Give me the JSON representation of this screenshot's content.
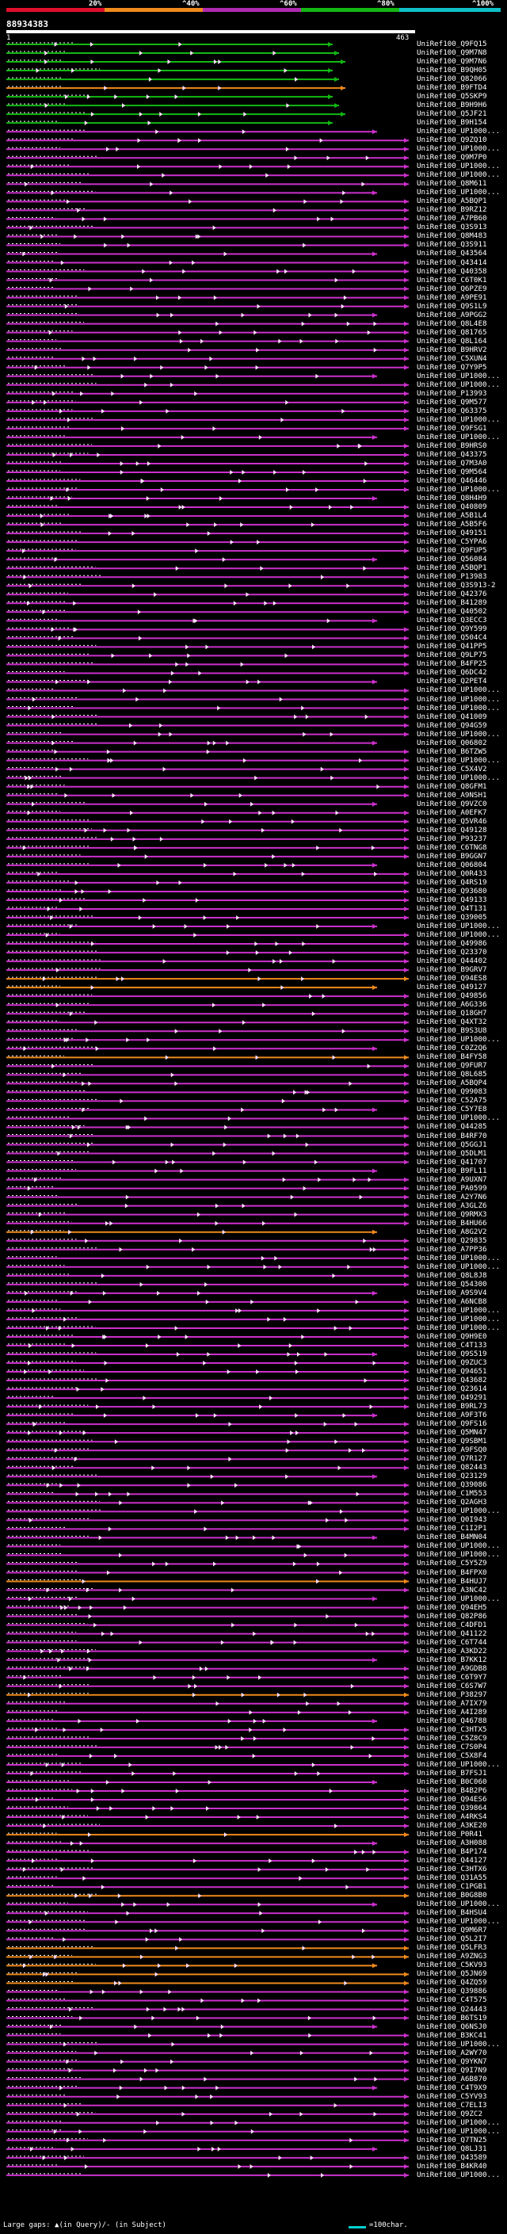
{
  "scale": {
    "labels": [
      "20%",
      "^40%",
      "^60%",
      "^80%",
      "^100%"
    ],
    "colors": [
      "#e0102a",
      "#f08a1c",
      "#b02ab0",
      "#14b814",
      "#10c0c8"
    ]
  },
  "query": {
    "id": "88934383",
    "start": "1",
    "end": "463"
  },
  "hits": [
    "UniRef100_Q9FQ15",
    "UniRef100_Q9M7N8",
    "UniRef100_Q9M7N6",
    "UniRef100_B9QH05",
    "UniRef100_Q82066",
    "UniRef100_B9FTD4",
    "UniRef100_Q5SKP9",
    "UniRef100_B9H9H6",
    "UniRef100_Q5JF21",
    "UniRef100_B9H154",
    "UniRef100_UP1000...",
    "UniRef100_Q9ZQ10",
    "UniRef100_UP1000...",
    "UniRef100_Q9M7P0",
    "UniRef100_UP1000...",
    "UniRef100_UP1000...",
    "UniRef100_Q8M611",
    "UniRef100_UP1000...",
    "UniRef100_A5BQP1",
    "UniRef100_B9RZ12",
    "UniRef100_A7PB60",
    "UniRef100_Q3S913",
    "UniRef100_Q8M483",
    "UniRef100_Q3S911",
    "UniRef100_Q43564",
    "UniRef100_Q43414",
    "UniRef100_Q40358",
    "UniRef100_C6T0K1",
    "UniRef100_Q6PZE9",
    "UniRef100_A9PE91",
    "UniRef100_Q9S1L9",
    "UniRef100_A9PGG2",
    "UniRef100_Q8L4E8",
    "UniRef100_Q81765",
    "UniRef100_Q8L164",
    "UniRef100_B9HRV2",
    "UniRef100_C5XUN4",
    "UniRef100_Q7Y9P5",
    "UniRef100_UP1000...",
    "UniRef100_UP1000...",
    "UniRef100_P13993",
    "UniRef100_Q9M577",
    "UniRef100_Q63375",
    "UniRef100_UP1000...",
    "UniRef100_Q9FSG1",
    "UniRef100_UP1000...",
    "UniRef100_B9HRS0",
    "UniRef100_Q43375",
    "UniRef100_Q7M3A0",
    "UniRef100_Q9M564",
    "UniRef100_Q46446",
    "UniRef100_UP1000...",
    "UniRef100_Q8H4H9",
    "UniRef100_Q40809",
    "UniRef100_A5B1L4",
    "UniRef100_A5B5F6",
    "UniRef100_Q49151",
    "UniRef100_C5YPA6",
    "UniRef100_Q9FUP5",
    "UniRef100_Q56084",
    "UniRef100_A5BQP1",
    "UniRef100_P13983",
    "UniRef100_Q3S913-2",
    "UniRef100_Q42376",
    "UniRef100_B41289",
    "UniRef100_Q40502",
    "UniRef100_Q3ECC3",
    "UniRef100_Q9Y599",
    "UniRef100_Q504C4",
    "UniRef100_Q41PP5",
    "UniRef100_Q9LP75",
    "UniRef100_B4FP25",
    "UniRef100_Q6DC42",
    "UniRef100_Q2PET4",
    "UniRef100_UP1000...",
    "UniRef100_UP1000...",
    "UniRef100_UP1000...",
    "UniRef100_Q41009",
    "UniRef100_Q94G59",
    "UniRef100_UP1000...",
    "UniRef100_Q06802",
    "UniRef100_B6TZW5",
    "UniRef100_UP1000...",
    "UniRef100_C5X4V2",
    "UniRef100_UP1000...",
    "UniRef100_Q8GFM1",
    "UniRef100_A9NSH1",
    "UniRef100_Q9VZC0",
    "UniRef100_A0EFK7",
    "UniRef100_Q5VR46",
    "UniRef100_Q49128",
    "UniRef100_P93237",
    "UniRef100_C6TNG8",
    "UniRef100_B9GGN7",
    "UniRef100_Q06804",
    "UniRef100_Q0R433",
    "UniRef100_Q4RS19",
    "UniRef100_Q93680",
    "UniRef100_Q49133",
    "UniRef100_Q4T131",
    "UniRef100_Q39005",
    "UniRef100_UP1000...",
    "UniRef100_UP1000...",
    "UniRef100_Q49986",
    "UniRef100_Q23370",
    "UniRef100_Q44402",
    "UniRef100_B9GRV7",
    "UniRef100_Q94ES8",
    "UniRef100_Q49127",
    "UniRef100_Q49856",
    "UniRef100_A6G336",
    "UniRef100_Q18GH7",
    "UniRef100_Q4XT32",
    "UniRef100_B9S3U8",
    "UniRef100_UP1000...",
    "UniRef100_C0Z2Q6",
    "UniRef100_B4FY58",
    "UniRef100_Q9FUR7",
    "UniRef100_Q8L685",
    "UniRef100_A5BQP4",
    "UniRef100_Q99083",
    "UniRef100_C52A75",
    "UniRef100_C5Y7E8",
    "UniRef100_UP1000...",
    "UniRef100_Q44285",
    "UniRef100_B4RF70",
    "UniRef100_Q5GGJ1",
    "UniRef100_Q5DLM1",
    "UniRef100_Q41707",
    "UniRef100_B9FL11",
    "UniRef100_A9UXN7",
    "UniRef100_PA0599",
    "UniRef100_A2Y7N6",
    "UniRef100_A3GLZ6",
    "UniRef100_Q9RMX3",
    "UniRef100_B4HU66",
    "UniRef100_A8G2V2",
    "UniRef100_Q29835",
    "UniRef100_A7PP36",
    "UniRef100_UP1000...",
    "UniRef100_UP1000...",
    "UniRef100_Q8L8J8",
    "UniRef100_Q54300",
    "UniRef100_A9S9V4",
    "UniRef100_A6NCB8",
    "UniRef100_UP1000...",
    "UniRef100_UP1000...",
    "UniRef100_UP1000...",
    "UniRef100_Q9H9E0",
    "UniRef100_C4T133",
    "UniRef100_Q9S519",
    "UniRef100_Q9ZUC3",
    "UniRef100_Q94651",
    "UniRef100_Q43682",
    "UniRef100_Q23614",
    "UniRef100_Q49291",
    "UniRef100_B9RL73",
    "UniRef100_A9F3T6",
    "UniRef100_Q9FS16",
    "UniRef100_Q5MN47",
    "UniRef100_Q9SBM1",
    "UniRef100_A9FSQ0",
    "UniRef100_Q7R127",
    "UniRef100_Q82443",
    "UniRef100_Q23129",
    "UniRef100_Q39086",
    "UniRef100_C1M553",
    "UniRef100_Q2AGH3",
    "UniRef100_UP1000...",
    "UniRef100_Q0I943",
    "UniRef100_C1I2P1",
    "UniRef100_B4MN04",
    "UniRef100_UP1000...",
    "UniRef100_UP1000...",
    "UniRef100_C5Y5Z9",
    "UniRef100_B4FPX0",
    "UniRef100_B4HUJ7",
    "UniRef100_A3NC42",
    "UniRef100_UP1000...",
    "UniRef100_Q94EH5",
    "UniRef100_Q82P86",
    "UniRef100_C4DFD1",
    "UniRef100_Q41122",
    "UniRef100_C6T744",
    "UniRef100_A3KD22",
    "UniRef100_B7KK12",
    "UniRef100_A9GDB8",
    "UniRef100_C6T9Y7",
    "UniRef100_C6S7W7",
    "UniRef100_P38297",
    "UniRef100_A7IX79",
    "UniRef100_A4I289",
    "UniRef100_Q46788",
    "UniRef100_C3HTX5",
    "UniRef100_C5Z8C9",
    "UniRef100_C7S0P4",
    "UniRef100_C5X8F4",
    "UniRef100_UP1000...",
    "UniRef100_B7FSJ1",
    "UniRef100_B0C060",
    "UniRef100_B4B2P6",
    "UniRef100_Q94ES6",
    "UniRef100_Q39864",
    "UniRef100_A4RKS4",
    "UniRef100_A3KE20",
    "UniRef100_P0R41",
    "UniRef100_A3H088",
    "UniRef100_B4P174",
    "UniRef100_Q44127",
    "UniRef100_C3HTX6",
    "UniRef100_Q31A55",
    "UniRef100_C1PGB1",
    "UniRef100_B0G8B0",
    "UniRef100_UP1000...",
    "UniRef100_B4HSU4",
    "UniRef100_UP1000...",
    "UniRef100_Q9M6R7",
    "UniRef100_Q5L2I7",
    "UniRef100_Q5LFR3",
    "UniRef100_A9ZNG3",
    "UniRef100_C5KV93",
    "UniRef100_Q5JN69",
    "UniRef100_Q4ZQ59",
    "UniRef100_Q39886",
    "UniRef100_C4T575",
    "UniRef100_Q24443",
    "UniRef100_B6TS19",
    "UniRef100_Q6NSJ0",
    "UniRef100_B3KC41",
    "UniRef100_UP1000...",
    "UniRef100_A2WY70",
    "UniRef100_Q9YKN7",
    "UniRef100_Q9I7N9",
    "UniRef100_A6B870",
    "UniRef100_C4T9X9",
    "UniRef100_C5YV93",
    "UniRef100_C7ELI3",
    "UniRef100_Q9ZC2",
    "UniRef100_UP1000...",
    "UniRef100_UP1000...",
    "UniRef100_Q7TN25",
    "UniRef100_Q8LJ31",
    "UniRef100_Q43589",
    "UniRef100_B4KR40",
    "UniRef100_UP1000..."
  ],
  "legend": {
    "text": "Large gaps: ▲(in Query)/- (in Subject)",
    "scale_text": "=100char."
  }
}
